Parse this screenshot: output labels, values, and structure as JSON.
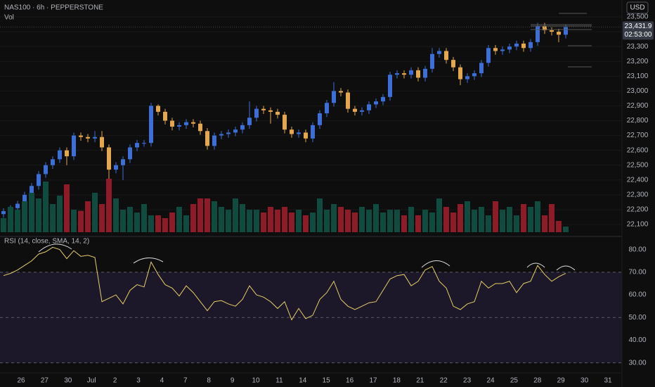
{
  "header": {
    "symbol": "NAS100 · 6h · PEPPERSTONE",
    "vol": "Vol",
    "currency": "USD"
  },
  "date_labels": [
    "26",
    "27",
    "30",
    "Jul",
    "2",
    "3",
    "4",
    "7",
    "8",
    "9",
    "10",
    "11",
    "14",
    "15",
    "16",
    "17",
    "18",
    "21",
    "22",
    "23",
    "24",
    "25",
    "28",
    "29",
    "30",
    "31"
  ],
  "chart_data": [
    {
      "type": "candlestick",
      "up_color": "#3d6fd6",
      "down_color": "#e3a74f",
      "open": [
        22170,
        22190,
        22210,
        22240,
        22300,
        22360,
        22440,
        22500,
        22540,
        22600,
        22560,
        22700,
        22690,
        22680,
        22690,
        22620,
        22470,
        22500,
        22540,
        22620,
        22650,
        22650,
        22900,
        22860,
        22800,
        22760,
        22770,
        22790,
        22780,
        22730,
        22630,
        22700,
        22710,
        22720,
        22740,
        22770,
        22820,
        22880,
        22870,
        22860,
        22840,
        22740,
        22710,
        22720,
        22680,
        22770,
        22850,
        22920,
        23000,
        22990,
        22880,
        22860,
        22870,
        22910,
        22930,
        22960,
        23110,
        23120,
        23110,
        23140,
        23090,
        23150,
        23250,
        23270,
        23210,
        23160,
        23080,
        23100,
        23120,
        23190,
        23290,
        23270,
        23280,
        23300,
        23320,
        23290,
        23330,
        23440,
        23410,
        23400,
        23380
      ],
      "high": [
        22210,
        22230,
        22260,
        22320,
        22380,
        22460,
        22520,
        22560,
        22620,
        22620,
        22720,
        22720,
        22710,
        22730,
        22730,
        22640,
        22520,
        22560,
        22640,
        22670,
        22670,
        22920,
        22910,
        22880,
        22820,
        22790,
        22810,
        22810,
        22800,
        22750,
        22720,
        22730,
        22740,
        22760,
        22790,
        22930,
        22900,
        22900,
        22890,
        22880,
        22860,
        22760,
        22740,
        22740,
        22790,
        22870,
        22940,
        23060,
        23020,
        23010,
        22900,
        22890,
        22930,
        22950,
        22980,
        23130,
        23140,
        23140,
        23160,
        23160,
        23170,
        23290,
        23290,
        23290,
        23230,
        23180,
        23120,
        23140,
        23210,
        23310,
        23310,
        23300,
        23320,
        23340,
        23340,
        23350,
        23460,
        23460,
        23430,
        23420,
        23450
      ],
      "low": [
        22145,
        22165,
        22185,
        22215,
        22275,
        22335,
        22415,
        22475,
        22515,
        22500,
        22535,
        22665,
        22655,
        22655,
        22595,
        22400,
        22445,
        22400,
        22515,
        22595,
        22625,
        22625,
        22835,
        22775,
        22735,
        22735,
        22745,
        22755,
        22705,
        22605,
        22605,
        22675,
        22685,
        22695,
        22715,
        22745,
        22795,
        22845,
        22780,
        22815,
        22715,
        22685,
        22685,
        22655,
        22655,
        22745,
        22825,
        22895,
        22965,
        22855,
        22835,
        22835,
        22845,
        22885,
        22905,
        22935,
        23085,
        23085,
        23085,
        23065,
        23065,
        23125,
        23225,
        23185,
        23135,
        23040,
        23055,
        23075,
        23095,
        23165,
        23245,
        23245,
        23255,
        23275,
        23265,
        23265,
        23305,
        23385,
        23375,
        23330,
        23355
      ],
      "close": [
        22190,
        22210,
        22240,
        22300,
        22360,
        22440,
        22500,
        22540,
        22600,
        22560,
        22700,
        22690,
        22680,
        22690,
        22620,
        22470,
        22500,
        22540,
        22620,
        22650,
        22650,
        22900,
        22860,
        22800,
        22760,
        22770,
        22790,
        22780,
        22730,
        22630,
        22700,
        22710,
        22720,
        22740,
        22770,
        22820,
        22880,
        22870,
        22860,
        22840,
        22740,
        22710,
        22720,
        22680,
        22770,
        22850,
        22920,
        23000,
        22990,
        22880,
        22860,
        22870,
        22910,
        22930,
        22960,
        23110,
        23120,
        23110,
        23140,
        23090,
        23150,
        23250,
        23270,
        23210,
        23160,
        23080,
        23100,
        23120,
        23190,
        23290,
        23270,
        23280,
        23300,
        23320,
        23290,
        23330,
        23440,
        23410,
        23400,
        23380,
        23431.9
      ],
      "last_price_label": "23,431.9",
      "countdown": "02:53:00",
      "ylim": [
        22048,
        23614
      ],
      "yticks": [
        {
          "value": 22100,
          "label": "22,100"
        },
        {
          "value": 22200,
          "label": "22,200"
        },
        {
          "value": 22300,
          "label": "22,300"
        },
        {
          "value": 22400,
          "label": "22,400"
        },
        {
          "value": 22500,
          "label": "22,500"
        },
        {
          "value": 22600,
          "label": "22,600"
        },
        {
          "value": 22700,
          "label": "22,700"
        },
        {
          "value": 22800,
          "label": "22,800"
        },
        {
          "value": 22900,
          "label": "22,900"
        },
        {
          "value": 23000,
          "label": "23,000"
        },
        {
          "value": 23100,
          "label": "23,100"
        },
        {
          "value": 23200,
          "label": "23,200"
        },
        {
          "value": 23300,
          "label": "23,300"
        },
        {
          "value": 23400,
          "label": "23,400"
        },
        {
          "value": 23500,
          "label": "23,500"
        }
      ],
      "grid": true
    },
    {
      "type": "bar",
      "up_color": "#0f4c3f",
      "down_color": "#8e1b27",
      "ylim": [
        0,
        100
      ],
      "values": [
        25,
        45,
        40,
        55,
        70,
        60,
        90,
        50,
        65,
        85,
        40,
        38,
        55,
        70,
        50,
        95,
        60,
        40,
        45,
        35,
        50,
        30,
        30,
        25,
        35,
        45,
        30,
        50,
        60,
        60,
        55,
        45,
        40,
        60,
        50,
        40,
        40,
        35,
        45,
        40,
        45,
        35,
        40,
        30,
        35,
        60,
        40,
        50,
        45,
        40,
        35,
        45,
        40,
        50,
        35,
        40,
        40,
        30,
        45,
        30,
        40,
        35,
        60,
        45,
        35,
        50,
        55,
        40,
        45,
        30,
        55,
        40,
        45,
        30,
        50,
        45,
        55,
        30,
        50,
        20,
        10
      ]
    },
    {
      "type": "line",
      "title": "RSI (14, close, SMA, 14, 2)",
      "color": "#e6cf68",
      "band_color": "#1c1729",
      "band": [
        30,
        70
      ],
      "midline": 50,
      "ylim": [
        24,
        83
      ],
      "yticks": [
        {
          "value": 80,
          "label": "80.00"
        },
        {
          "value": 70,
          "label": "70.00"
        },
        {
          "value": 60,
          "label": "60.00"
        },
        {
          "value": 50,
          "label": "50.00"
        },
        {
          "value": 40,
          "label": "40.00"
        },
        {
          "value": 30,
          "label": "30.00"
        }
      ],
      "values": [
        68.5,
        69.5,
        71,
        73,
        75,
        78,
        79,
        81,
        80,
        76,
        79.5,
        77,
        77.5,
        76.5,
        57,
        58.5,
        60,
        56,
        62,
        64.5,
        63.5,
        74.5,
        69,
        64.5,
        63,
        59.5,
        64,
        61,
        57,
        53,
        57,
        57.5,
        56,
        55,
        58,
        64,
        60,
        59,
        57,
        54,
        57,
        49,
        54,
        49.5,
        51,
        58,
        61,
        66,
        58,
        55,
        53.5,
        55,
        56.5,
        57,
        62,
        67,
        68.5,
        69,
        64,
        66,
        71,
        72.5,
        66,
        63,
        55,
        53.5,
        56,
        57,
        66,
        63,
        65,
        65,
        66,
        61,
        65,
        66,
        73,
        69,
        66,
        68,
        69.5
      ]
    }
  ]
}
